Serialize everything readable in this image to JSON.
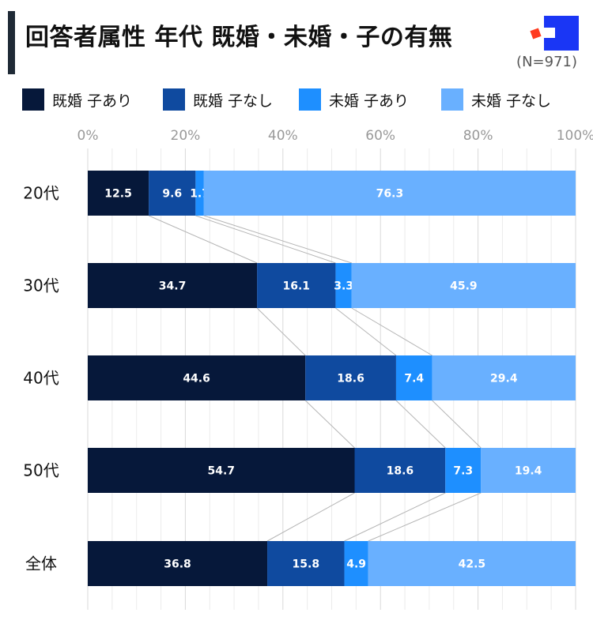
{
  "title": "回答者属性 年代 既婚・未婚・子の有無",
  "sample": "(N=971)",
  "logo": {
    "name": "brand-logo",
    "colors": [
      "#1a36f5",
      "#ff3b1f"
    ]
  },
  "chart_data": {
    "type": "bar",
    "orientation": "horizontal-stacked-100",
    "categories": [
      "20代",
      "30代",
      "40代",
      "50代",
      "全体"
    ],
    "series": [
      {
        "name": "既婚 子あり",
        "color": "#06183a",
        "values": [
          12.5,
          34.7,
          44.6,
          54.7,
          36.8
        ]
      },
      {
        "name": "既婚 子なし",
        "color": "#0f4a9f",
        "values": [
          9.6,
          16.1,
          18.6,
          18.6,
          15.8
        ]
      },
      {
        "name": "未婚 子あり",
        "color": "#1e8fff",
        "values": [
          1.7,
          3.3,
          7.4,
          7.3,
          4.9
        ]
      },
      {
        "name": "未婚 子なし",
        "color": "#69b0ff",
        "values": [
          76.3,
          45.9,
          29.4,
          19.4,
          42.5
        ]
      }
    ],
    "xlim": [
      0,
      100
    ],
    "xticks": [
      "0%",
      "20%",
      "40%",
      "60%",
      "80%",
      "100%"
    ],
    "grid": true,
    "connector_lines": true,
    "legend": "top"
  }
}
